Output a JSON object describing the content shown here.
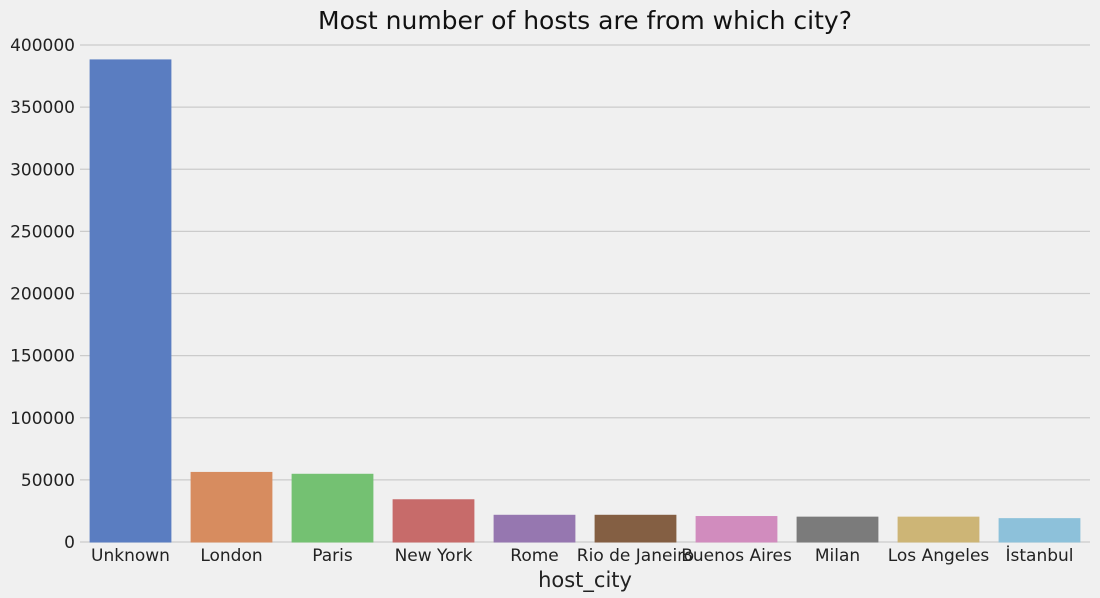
{
  "chart_data": {
    "type": "bar",
    "title": "Most number of hosts are from which city?",
    "xlabel": "host_city",
    "ylabel": "",
    "ylim": [
      0,
      400000
    ],
    "yticks": [
      0,
      50000,
      100000,
      150000,
      200000,
      250000,
      300000,
      350000,
      400000
    ],
    "ytick_labels": [
      "0",
      "50000",
      "100000",
      "150000",
      "200000",
      "250000",
      "300000",
      "350000",
      "400000"
    ],
    "grid": "horizontal",
    "categories": [
      "Unknown",
      "London",
      "Paris",
      "New York",
      "Rome",
      "Rio de Janeiro",
      "Buenos Aires",
      "Milan",
      "Los Angeles",
      "İstanbul"
    ],
    "values": [
      388000,
      56000,
      54500,
      34000,
      21500,
      21500,
      20500,
      20000,
      20000,
      18800
    ],
    "colors": [
      "#5a7dc1",
      "#d78c5f",
      "#74c172",
      "#c76b6a",
      "#9677b0",
      "#845f43",
      "#d18cbe",
      "#7b7b7b",
      "#cdb576",
      "#8dc1da"
    ]
  }
}
